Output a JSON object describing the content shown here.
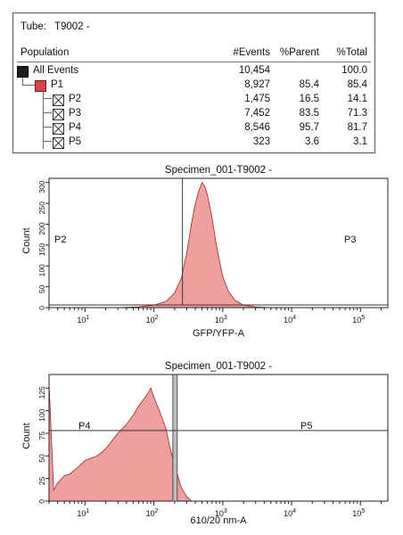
{
  "tube": {
    "label": "Tube:",
    "name": "T9002 -"
  },
  "stats": {
    "headers": {
      "population": "Population",
      "events": "#Events",
      "parent": "%Parent",
      "total": "%Total"
    },
    "rows": [
      {
        "name": "All Events",
        "events": "10,454",
        "parent": "",
        "total": "100.0",
        "swatch": "black",
        "level": 0
      },
      {
        "name": "P1",
        "events": "8,927",
        "parent": "85.4",
        "total": "85.4",
        "swatch": "red",
        "level": 1
      },
      {
        "name": "P2",
        "events": "1,475",
        "parent": "16.5",
        "total": "14.1",
        "swatch": "x",
        "level": 2
      },
      {
        "name": "P3",
        "events": "7,452",
        "parent": "83.5",
        "total": "71.3",
        "swatch": "x",
        "level": 2
      },
      {
        "name": "P4",
        "events": "8,546",
        "parent": "95.7",
        "total": "81.7",
        "swatch": "x",
        "level": 2
      },
      {
        "name": "P5",
        "events": "323",
        "parent": "3.6",
        "total": "3.1",
        "swatch": "x",
        "level": 2
      }
    ]
  },
  "colors": {
    "fill": "#ef9a9a",
    "stroke": "#b71c1c",
    "gate": "#333333",
    "background": "#ffffff"
  },
  "chart_data": [
    {
      "type": "area",
      "title": "Specimen_001-T9002 -",
      "xlabel": "GFP/YFP-A",
      "ylabel": "Count",
      "x_scale": "log",
      "xlim": [
        3,
        250000
      ],
      "ylim": [
        0,
        310
      ],
      "x_ticks": [
        10,
        100,
        1000,
        10000,
        100000
      ],
      "x_tick_labels": [
        "10^1",
        "10^2",
        "10^3",
        "10^4",
        "10^5"
      ],
      "y_ticks": [
        0,
        50,
        100,
        150,
        200,
        250,
        300
      ],
      "y_tick_labels": [
        "0",
        "50",
        "100",
        "150",
        "200",
        "250",
        "300"
      ],
      "gates": [
        {
          "name": "P2",
          "x_range": [
            3,
            260
          ]
        },
        {
          "name": "P3",
          "x_range": [
            260,
            250000
          ]
        }
      ],
      "series": [
        {
          "x": [
            3,
            30,
            60,
            100,
            150,
            200,
            250,
            300,
            350,
            400,
            450,
            500,
            550,
            600,
            700,
            800,
            900,
            1000,
            1200,
            1500,
            2000,
            3000,
            5000
          ],
          "values": [
            0,
            0,
            2,
            6,
            15,
            35,
            70,
            130,
            200,
            250,
            280,
            300,
            290,
            270,
            215,
            155,
            110,
            75,
            40,
            18,
            6,
            2,
            0
          ]
        }
      ]
    },
    {
      "type": "area",
      "title": "Specimen_001-T9002 -",
      "xlabel": "610/20 nm-A",
      "ylabel": "Count",
      "x_scale": "log",
      "xlim": [
        3,
        250000
      ],
      "ylim": [
        0,
        140
      ],
      "x_ticks": [
        10,
        100,
        1000,
        10000,
        100000
      ],
      "x_tick_labels": [
        "10^1",
        "10^2",
        "10^3",
        "10^4",
        "10^5"
      ],
      "y_ticks": [
        0,
        25,
        50,
        75,
        100,
        125
      ],
      "y_tick_labels": [
        "0",
        "25",
        "50",
        "75",
        "100",
        "125"
      ],
      "gates": [
        {
          "name": "P4",
          "x_range": [
            3,
            200
          ]
        },
        {
          "name": "P5",
          "x_range": [
            200,
            250000
          ]
        }
      ],
      "threshold_count": 78,
      "series": [
        {
          "x": [
            3,
            3.5,
            4,
            5,
            6,
            8,
            10,
            15,
            20,
            30,
            40,
            50,
            60,
            70,
            80,
            90,
            100,
            120,
            150,
            170,
            200,
            250,
            300,
            350
          ],
          "values": [
            130,
            12,
            20,
            28,
            30,
            38,
            45,
            50,
            58,
            75,
            85,
            95,
            105,
            112,
            118,
            125,
            115,
            100,
            80,
            60,
            40,
            15,
            5,
            0
          ]
        }
      ]
    }
  ]
}
